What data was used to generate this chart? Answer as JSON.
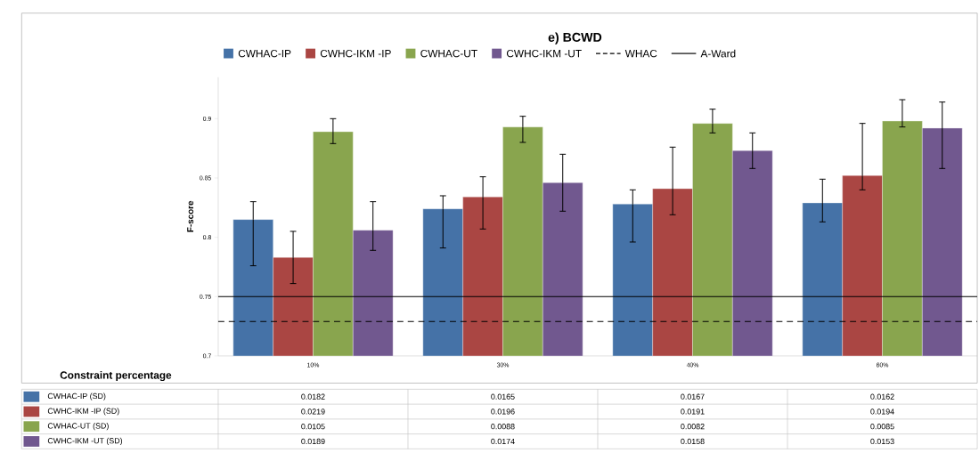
{
  "chart_data": {
    "type": "bar",
    "title": "e) BCWD",
    "xlabel": "Constraint percentage",
    "ylabel": "F-score",
    "categories": [
      "10%",
      "30%",
      "40%",
      "60%"
    ],
    "series": [
      {
        "name": "CWHAC-IP",
        "color": "#4572a7",
        "values": [
          0.815,
          0.824,
          0.828,
          0.829
        ],
        "errors": [
          [
            0.776,
            0.83
          ],
          [
            0.791,
            0.835
          ],
          [
            0.796,
            0.84
          ],
          [
            0.813,
            0.849
          ]
        ]
      },
      {
        "name": "CWHC-IKM -IP",
        "color": "#aa4643",
        "values": [
          0.783,
          0.834,
          0.841,
          0.852
        ],
        "errors": [
          [
            0.761,
            0.805
          ],
          [
            0.807,
            0.851
          ],
          [
            0.819,
            0.876
          ],
          [
            0.84,
            0.896
          ]
        ]
      },
      {
        "name": "CWHAC-UT",
        "color": "#89a54e",
        "values": [
          0.889,
          0.893,
          0.896,
          0.898
        ],
        "errors": [
          [
            0.879,
            0.9
          ],
          [
            0.88,
            0.902
          ],
          [
            0.888,
            0.908
          ],
          [
            0.893,
            0.916
          ]
        ]
      },
      {
        "name": "CWHC-IKM -UT",
        "color": "#71588f",
        "values": [
          0.806,
          0.846,
          0.873,
          0.892
        ],
        "errors": [
          [
            0.789,
            0.83
          ],
          [
            0.822,
            0.87
          ],
          [
            0.858,
            0.888
          ],
          [
            0.858,
            0.914
          ]
        ]
      }
    ],
    "ylim": [
      0.7,
      0.935
    ],
    "yticks": [
      0.7,
      0.75,
      0.8,
      0.85,
      0.9
    ],
    "ref_lines": [
      {
        "axis": "y",
        "value": 0.729,
        "label": "WHAC",
        "line_style": "dashed",
        "color": "#000000"
      },
      {
        "axis": "y",
        "value": 0.75,
        "label": "A-Ward",
        "line_style": "solid",
        "color": "#000000"
      }
    ],
    "legend": "top",
    "annotations": [
      "CWHAC-IP (SD)",
      "0.0182",
      "0.0165",
      "0.0167",
      "0.0162",
      "CWHC-IKM -IP (SD)",
      "0.0219",
      "0.0196",
      "0.0191",
      "0.0194",
      "CWHAC-UT (SD)",
      "0.0105",
      "0.0088",
      "0.0082",
      "0.0085",
      "CWHC-IKM -UT (SD)",
      "0.0189",
      "0.0174",
      "0.0158",
      "0.0153"
    ]
  }
}
